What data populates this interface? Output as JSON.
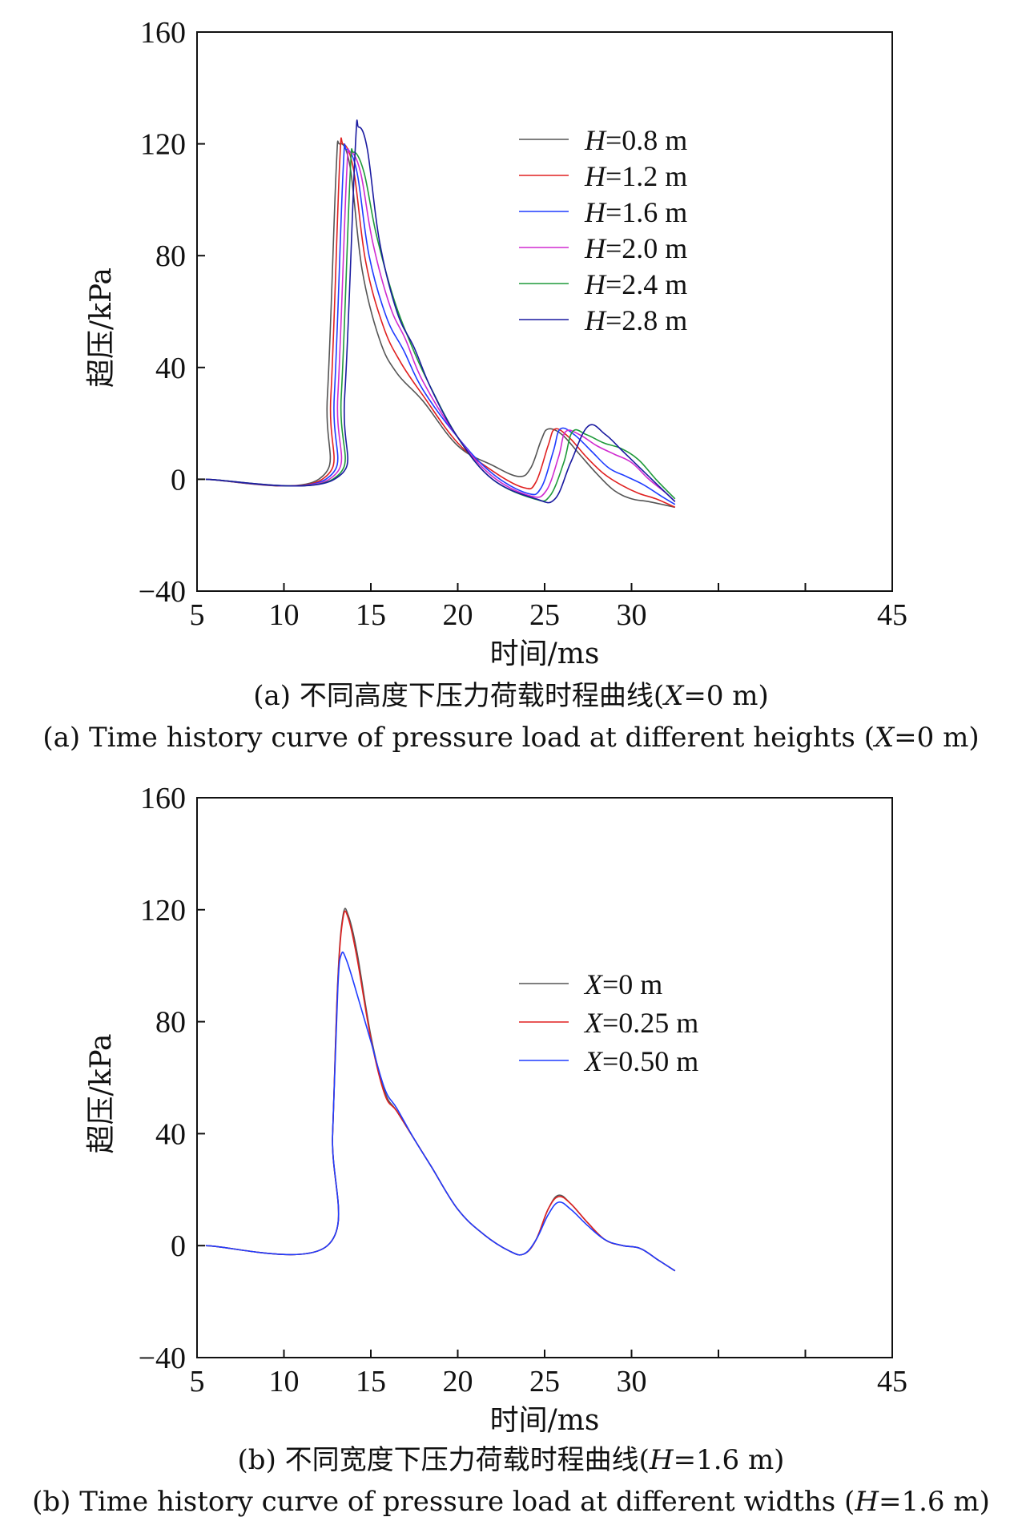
{
  "chart_data": [
    {
      "type": "line",
      "caption_cn": "(a) 不同高度下压力荷载时程曲线(X=0 m)",
      "caption_en": "(a) Time history curve of pressure load at different heights (X=0 m)",
      "xlabel": "时间/ms",
      "ylabel": "超压/kPa",
      "xlim": [
        5,
        45
      ],
      "ylim": [
        -40,
        160
      ],
      "xticks": [
        5,
        10,
        15,
        20,
        25,
        30,
        35,
        40,
        45
      ],
      "xticklabels": [
        "5",
        "10",
        "15",
        "20",
        "25",
        "30",
        "",
        "",
        "45"
      ],
      "yticks": [
        -40,
        0,
        40,
        80,
        120,
        160
      ],
      "yticklabels": [
        "−40",
        "0",
        "40",
        "80",
        "120",
        "160"
      ],
      "legend_position": "upper-right",
      "series": [
        {
          "name": "H=0.8 m",
          "color": "#555555",
          "x": [
            5.5,
            12.0,
            12.5,
            13.0,
            13.2,
            13.8,
            14.5,
            15.5,
            16.5,
            18.0,
            20.0,
            22.0,
            23.5,
            24.2,
            24.8,
            25.2,
            26.0,
            27.0,
            28.0,
            29.0,
            30.0,
            31.0,
            32.5
          ],
          "y": [
            0,
            0,
            30,
            110,
            120,
            112,
            75,
            50,
            38,
            28,
            12,
            5,
            1,
            4,
            14,
            18,
            16,
            9,
            2,
            -4,
            -7,
            -8,
            -10
          ]
        },
        {
          "name": "H=1.2 m",
          "color": "#e02020",
          "x": [
            5.5,
            12.2,
            12.7,
            13.2,
            13.4,
            14.0,
            14.7,
            15.7,
            16.7,
            18.0,
            20.0,
            22.0,
            23.8,
            24.5,
            25.2,
            25.6,
            26.4,
            27.4,
            28.4,
            29.4,
            30.4,
            31.4,
            32.5
          ],
          "y": [
            0,
            0,
            30,
            112,
            120,
            111,
            78,
            55,
            42,
            30,
            13,
            3,
            -3,
            -1,
            12,
            18,
            15,
            8,
            2,
            -2,
            -5,
            -7,
            -10
          ]
        },
        {
          "name": "H=1.6 m",
          "color": "#1e3cff",
          "x": [
            5.5,
            12.4,
            12.9,
            13.4,
            13.6,
            14.2,
            14.9,
            15.9,
            16.9,
            18.0,
            20.0,
            22.0,
            24.0,
            24.8,
            25.5,
            25.9,
            26.7,
            27.7,
            28.7,
            29.7,
            30.7,
            31.7,
            32.5
          ],
          "y": [
            0,
            0,
            30,
            110,
            118,
            110,
            80,
            58,
            46,
            32,
            15,
            2,
            -5,
            -3,
            10,
            18,
            16,
            10,
            4,
            1,
            -2,
            -6,
            -9
          ]
        },
        {
          "name": "H=2.0 m",
          "color": "#d02bd0",
          "x": [
            5.5,
            12.6,
            13.1,
            13.6,
            13.8,
            14.4,
            15.1,
            16.1,
            17.0,
            18.0,
            20.0,
            22.0,
            24.2,
            25.1,
            25.8,
            26.2,
            27.0,
            28.0,
            29.0,
            30.0,
            31.0,
            32.0,
            32.5
          ],
          "y": [
            0,
            0,
            30,
            108,
            117,
            110,
            85,
            62,
            50,
            35,
            15,
            1,
            -6,
            -4,
            8,
            17,
            16,
            12,
            9,
            6,
            0,
            -5,
            -8
          ]
        },
        {
          "name": "H=2.4 m",
          "color": "#1f9a3a",
          "x": [
            5.5,
            12.8,
            13.3,
            13.8,
            14.0,
            14.6,
            15.3,
            16.3,
            17.2,
            18.2,
            20.0,
            22.0,
            24.4,
            25.3,
            26.1,
            26.6,
            27.4,
            28.4,
            29.4,
            30.4,
            31.4,
            32.5
          ],
          "y": [
            0,
            0,
            30,
            108,
            117,
            110,
            88,
            65,
            50,
            36,
            15,
            0,
            -7,
            -6,
            6,
            17,
            16,
            13,
            11,
            7,
            0,
            -7
          ]
        },
        {
          "name": "H=2.8 m",
          "color": "#1a1aa0",
          "x": [
            5.5,
            12.9,
            13.5,
            14.1,
            14.3,
            14.8,
            15.5,
            16.5,
            17.5,
            18.5,
            20.0,
            22.0,
            24.5,
            25.6,
            26.5,
            27.5,
            28.5,
            29.5,
            30.5,
            31.5,
            32.5
          ],
          "y": [
            0,
            0,
            30,
            118,
            126,
            118,
            85,
            60,
            47,
            32,
            15,
            0,
            -7,
            -7,
            6,
            19,
            16,
            10,
            4,
            -2,
            -8
          ]
        }
      ]
    },
    {
      "type": "line",
      "caption_cn": "(b) 不同宽度下压力荷载时程曲线(H=1.6 m)",
      "caption_en": "(b) Time history curve of pressure load at different widths (H=1.6 m)",
      "xlabel": "时间/ms",
      "ylabel": "超压/kPa",
      "xlim": [
        5,
        45
      ],
      "ylim": [
        -40,
        160
      ],
      "xticks": [
        5,
        10,
        15,
        20,
        25,
        30,
        35,
        40,
        45
      ],
      "xticklabels": [
        "5",
        "10",
        "15",
        "20",
        "25",
        "30",
        "",
        "",
        "45"
      ],
      "yticks": [
        -40,
        0,
        40,
        80,
        120,
        160
      ],
      "yticklabels": [
        "−40",
        "0",
        "40",
        "80",
        "120",
        "160"
      ],
      "legend_position": "upper-right",
      "series": [
        {
          "name": "X=0 m",
          "color": "#555555",
          "x": [
            5.5,
            12.5,
            12.8,
            13.1,
            13.4,
            13.7,
            14.2,
            15.0,
            15.8,
            16.5,
            17.5,
            18.5,
            20.0,
            21.5,
            23.0,
            23.8,
            24.5,
            25.2,
            25.8,
            26.5,
            27.5,
            28.5,
            29.5,
            30.5,
            31.5,
            32.5
          ],
          "y": [
            0,
            0,
            40,
            95,
            118,
            118,
            105,
            75,
            55,
            48,
            38,
            28,
            13,
            4,
            -2,
            -3,
            2,
            13,
            18,
            15,
            8,
            2,
            0,
            -1,
            -5,
            -9
          ]
        },
        {
          "name": "X=0.25 m",
          "color": "#e02020",
          "x": [
            5.5,
            12.5,
            12.8,
            13.1,
            13.4,
            13.7,
            14.2,
            15.0,
            15.8,
            16.5,
            17.5,
            18.5,
            20.0,
            21.5,
            23.0,
            23.8,
            24.5,
            25.2,
            25.8,
            26.5,
            27.5,
            28.5,
            29.5,
            30.5,
            31.5,
            32.5
          ],
          "y": [
            0,
            0,
            40,
            94,
            117,
            117,
            103,
            74,
            54,
            48,
            38,
            28,
            13,
            4,
            -2,
            -3,
            2,
            13,
            17.5,
            15,
            8,
            2,
            0,
            -1,
            -5,
            -9
          ]
        },
        {
          "name": "X=0.50 m",
          "color": "#1e3cff",
          "x": [
            5.5,
            12.5,
            12.8,
            13.1,
            13.3,
            13.6,
            14.2,
            15.0,
            15.8,
            16.5,
            17.5,
            18.5,
            20.0,
            21.5,
            23.0,
            23.8,
            24.5,
            25.2,
            25.8,
            26.5,
            27.5,
            28.5,
            29.5,
            30.5,
            31.5,
            32.5
          ],
          "y": [
            0,
            0,
            40,
            92,
            104,
            102,
            90,
            73,
            56,
            49,
            38,
            28,
            13,
            4,
            -2,
            -3,
            2,
            11,
            15.5,
            13,
            7,
            2,
            0,
            -1,
            -5,
            -9
          ]
        }
      ]
    }
  ]
}
